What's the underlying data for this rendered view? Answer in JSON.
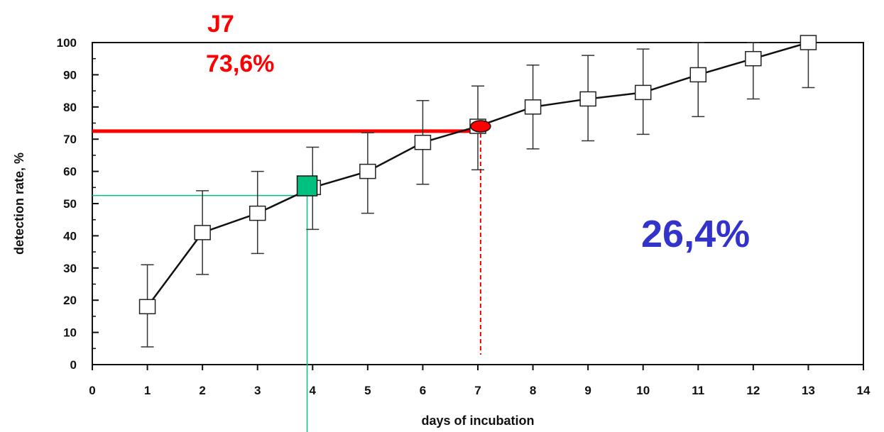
{
  "chart_data": {
    "type": "line",
    "xlabel": "days of incubation",
    "ylabel": "detection rate, %",
    "xlim": [
      0,
      14
    ],
    "ylim": [
      0,
      100
    ],
    "x_ticks": [
      "0",
      "1",
      "2",
      "3",
      "4",
      "5",
      "6",
      "7",
      "8",
      "9",
      "10",
      "11",
      "12",
      "13",
      "14"
    ],
    "y_ticks": [
      "0",
      "10",
      "20",
      "30",
      "40",
      "50",
      "60",
      "70",
      "80",
      "90",
      "100"
    ],
    "grid": false,
    "series": [
      {
        "x": [
          1,
          2,
          3,
          4,
          5,
          6,
          7,
          8,
          9,
          10,
          11,
          12,
          13
        ],
        "values": [
          18,
          41,
          47,
          55,
          60,
          69,
          74,
          80,
          82.5,
          84.5,
          90,
          95,
          100
        ],
        "error_upper": [
          31,
          54,
          60,
          67.5,
          72,
          82,
          86.5,
          93,
          96,
          98,
          100,
          100,
          100
        ],
        "error_lower": [
          5.5,
          28,
          34.5,
          42,
          47,
          56,
          60.5,
          67,
          69.5,
          71.5,
          77,
          82.5,
          86
        ]
      }
    ],
    "annotations": {
      "label_day": "J7",
      "label_rate": "73,6%",
      "label_remaining": "26,4%",
      "red_hline_y": 72.5,
      "red_marker": {
        "x": 7.05,
        "y": 74
      },
      "red_vline_x": 7.05,
      "green_marker": {
        "x": 3.9,
        "y": 55.5
      },
      "green_hline_y": 52.5,
      "green_vline_x": 3.9,
      "colors": {
        "red": "#ff0000",
        "green": "#00c080",
        "blue": "#3333cc"
      }
    }
  }
}
